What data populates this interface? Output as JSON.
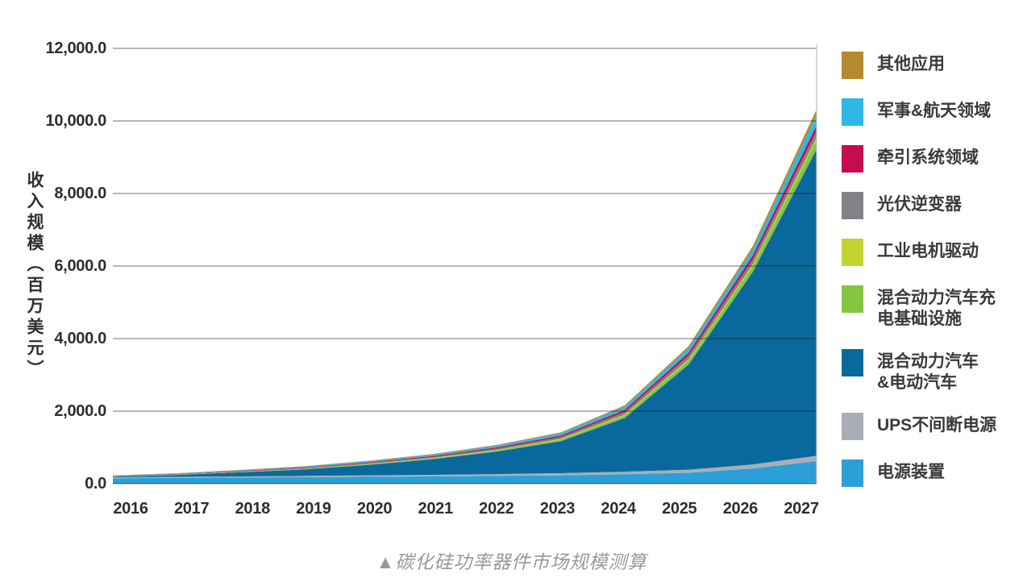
{
  "figure": {
    "y_axis_title": "收入规模（百万美元）",
    "caption": "▲碳化硅功率器件市场规模测算"
  },
  "chart_data": {
    "type": "area",
    "stacked": true,
    "title": "碳化硅功率器件市场规模测算",
    "ylabel": "收入规模（百万美元）",
    "xlabel": "",
    "ylim": [
      0,
      12000
    ],
    "grid": true,
    "legend_position": "right",
    "categories": [
      "2016",
      "2017",
      "2018",
      "2019",
      "2020",
      "2021",
      "2022",
      "2023",
      "2024",
      "2025",
      "2026",
      "2027"
    ],
    "y_ticks": [
      {
        "label": "12,000.0",
        "value": 12000
      },
      {
        "label": "10,000.0",
        "value": 10000
      },
      {
        "label": "8,000.0",
        "value": 8000
      },
      {
        "label": "6,000.0",
        "value": 6000
      },
      {
        "label": "4,000.0",
        "value": 4000
      },
      {
        "label": "2,000.0",
        "value": 2000
      },
      {
        "label": "0.0",
        "value": 0
      }
    ],
    "stacking_order": "bottom-to-top",
    "series": [
      {
        "id": "power-supply",
        "name": "电源装置",
        "legend_label": "电源装置",
        "color": "#2c9fd9",
        "values": [
          150,
          160,
          170,
          180,
          190,
          200,
          215,
          230,
          260,
          300,
          420,
          620
        ]
      },
      {
        "id": "ups",
        "name": "UPS不间断电源",
        "legend_label": "UPS不间断电源",
        "color": "#a9aeb4",
        "values": [
          25,
          28,
          30,
          35,
          40,
          45,
          50,
          60,
          70,
          85,
          110,
          150
        ]
      },
      {
        "id": "hev-ev",
        "name": "混合动力汽车&电动汽车",
        "legend_label": "混合动力汽车\n&电动汽车",
        "color": "#0a699c",
        "values": [
          20,
          55,
          115,
          180,
          290,
          430,
          620,
          880,
          1480,
          2900,
          5300,
          8450
        ]
      },
      {
        "id": "charging-infra",
        "name": "混合动力汽车充电基础设施",
        "legend_label": "混合动力汽车充\n电基础设施",
        "color": "#85c441",
        "values": [
          3,
          4,
          6,
          10,
          15,
          20,
          30,
          45,
          70,
          110,
          160,
          250
        ]
      },
      {
        "id": "industrial-motor",
        "name": "工业电机驱动",
        "legend_label": "工业电机驱动",
        "color": "#c3d433",
        "values": [
          3,
          4,
          5,
          7,
          10,
          12,
          15,
          20,
          28,
          40,
          55,
          80
        ]
      },
      {
        "id": "pv-inverter",
        "name": "光伏逆变器",
        "legend_label": "光伏逆变器",
        "color": "#818285",
        "values": [
          8,
          10,
          14,
          18,
          24,
          30,
          38,
          50,
          70,
          100,
          130,
          180
        ]
      },
      {
        "id": "traction",
        "name": "牵引系统领域",
        "legend_label": "牵引系统领域",
        "color": "#c40d4e",
        "values": [
          6,
          8,
          12,
          16,
          20,
          25,
          32,
          40,
          55,
          80,
          110,
          150
        ]
      },
      {
        "id": "military-aerospace",
        "name": "军事&航天领域",
        "legend_label": "军事&航天领域",
        "color": "#2fb7e5",
        "values": [
          10,
          14,
          18,
          24,
          30,
          38,
          48,
          60,
          85,
          120,
          170,
          280
        ]
      },
      {
        "id": "other",
        "name": "其他应用",
        "legend_label": "其他应用",
        "color": "#b5892e",
        "values": [
          5,
          7,
          10,
          12,
          15,
          18,
          22,
          28,
          40,
          60,
          90,
          160
        ]
      }
    ]
  }
}
